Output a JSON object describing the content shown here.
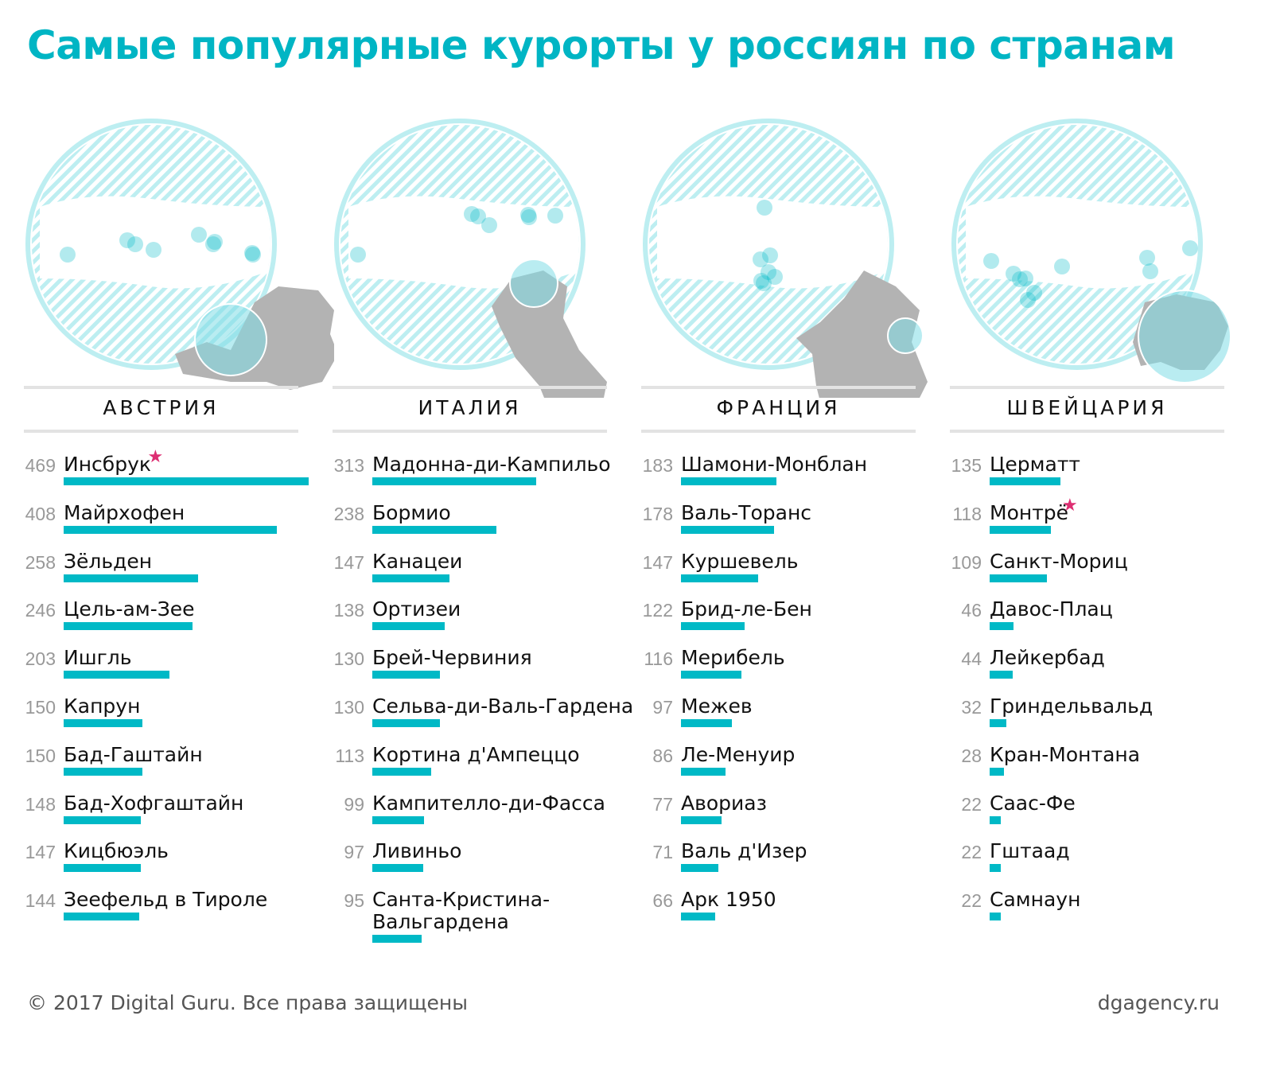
{
  "title": "Самые популярные курорты у россиян по странам",
  "footer": {
    "copyright": "© 2017 Digital Guru. Все права защищены",
    "site": "dgagency.ru"
  },
  "colors": {
    "accent": "#00b9c6",
    "title": "#00b5c4",
    "star": "#dd2e72",
    "country_fill": "#b3b3b3",
    "hatch": "#bdeef1"
  },
  "chart_data": [
    {
      "type": "bar",
      "title": "АВСТРИЯ",
      "categories": [
        "Инсбрук",
        "Майрхофен",
        "Зёльден",
        "Цель-ам-Зее",
        "Ишгль",
        "Капрун",
        "Бад-Гаштайн",
        "Бад-Хофгаштайн",
        "Кицбюэль",
        "Зеефельд в Тироле"
      ],
      "values": [
        469,
        408,
        258,
        246,
        203,
        150,
        150,
        148,
        147,
        144
      ],
      "starred": [
        "Инсбрук"
      ]
    },
    {
      "type": "bar",
      "title": "ИТАЛИЯ",
      "categories": [
        "Мадонна-ди-Кампильо",
        "Бормио",
        "Канацеи",
        "Ортизеи",
        "Брей-Червиния",
        "Сельва-ди-Валь-Гардена",
        "Кортина д'Ампеццо",
        "Кампителло-ди-Фасса",
        "Ливиньо",
        "Санта-Кристина-Вальгардена"
      ],
      "values": [
        313,
        238,
        147,
        138,
        130,
        130,
        113,
        99,
        97,
        95
      ],
      "starred": []
    },
    {
      "type": "bar",
      "title": "ФРАНЦИЯ",
      "categories": [
        "Шамони-Монблан",
        "Валь-Торанс",
        "Куршевель",
        "Брид-ле-Бен",
        "Мерибель",
        "Межев",
        "Ле-Менуир",
        "Авориаз",
        "Валь д'Изер",
        "Арк 1950"
      ],
      "values": [
        183,
        178,
        147,
        122,
        116,
        97,
        86,
        77,
        71,
        66
      ],
      "starred": []
    },
    {
      "type": "bar",
      "title": "ШВЕЙЦАРИЯ",
      "categories": [
        "Церматт",
        "Монтрё",
        "Санкт-Мориц",
        "Давос-Плац",
        "Лейкербад",
        "Гриндельвальд",
        "Кран-Монтана",
        "Саас-Фе",
        "Гштаад",
        "Самнаун"
      ],
      "values": [
        135,
        118,
        109,
        46,
        44,
        32,
        28,
        22,
        22,
        22
      ],
      "starred": [
        "Монтрё"
      ]
    }
  ]
}
